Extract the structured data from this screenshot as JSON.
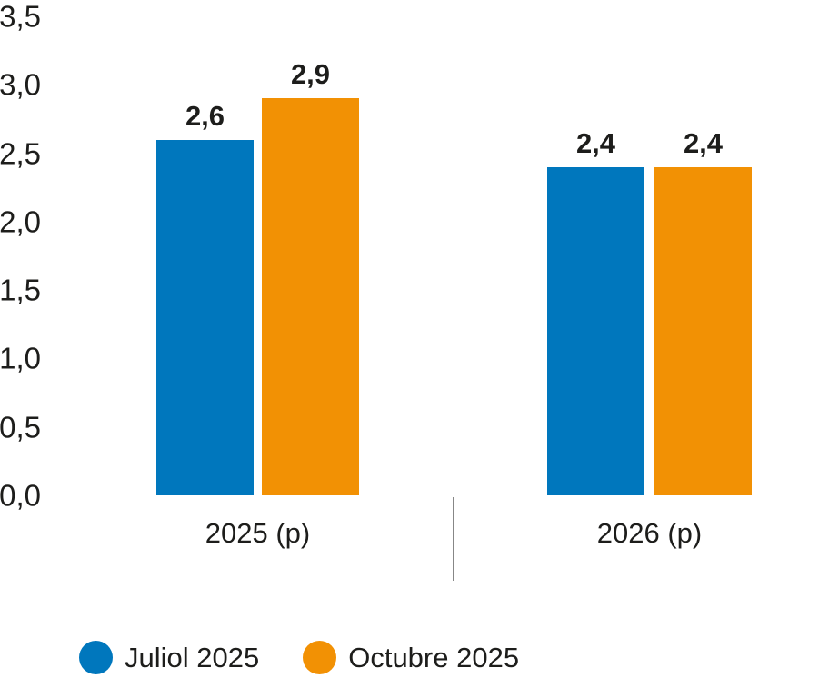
{
  "chart_data": {
    "type": "bar",
    "title": "",
    "categories": [
      "2025 (p)",
      "2026 (p)"
    ],
    "series": [
      {
        "name": "Juliol 2025",
        "color": "#0077BD",
        "values": [
          2.6,
          2.4
        ],
        "value_labels": [
          "2,6",
          "2,4"
        ]
      },
      {
        "name": "Octubre 2025",
        "color": "#F29104",
        "values": [
          2.9,
          2.4
        ],
        "value_labels": [
          "2,9",
          "2,4"
        ]
      }
    ],
    "ylim": [
      0,
      3.5
    ],
    "yticks": [
      {
        "value": 0,
        "label": "0,0"
      },
      {
        "value": 0.5,
        "label": "0,5"
      },
      {
        "value": 1,
        "label": "1,0"
      },
      {
        "value": 1.5,
        "label": "1,5"
      },
      {
        "value": 2,
        "label": "2,0"
      },
      {
        "value": 2.5,
        "label": "2,5"
      },
      {
        "value": 3,
        "label": "3,0"
      },
      {
        "value": 3.5,
        "label": "3,5"
      }
    ],
    "grid": false,
    "axis_lines": false,
    "legend_position": "bottom",
    "decimal_separator": ",",
    "divider_color": "#878787",
    "text_color": "#1d1d1b"
  }
}
